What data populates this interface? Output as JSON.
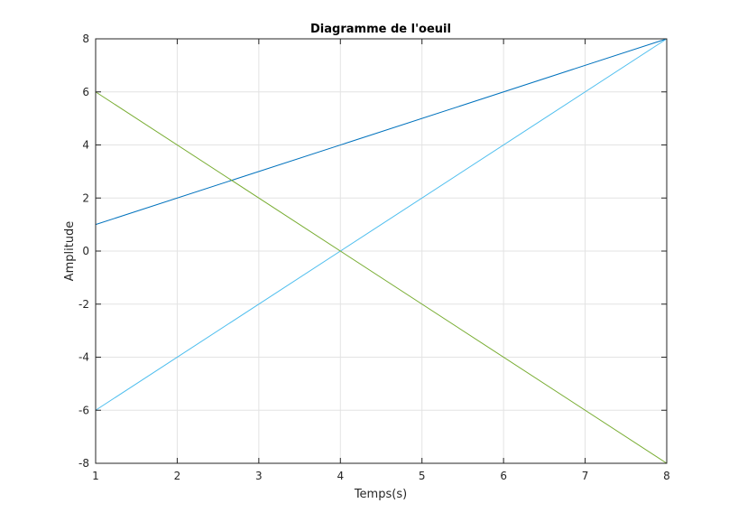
{
  "chart_data": {
    "type": "line",
    "title": "Diagramme de l'oeuil",
    "xlabel": "Temps(s)",
    "ylabel": "Amplitude",
    "xlim": [
      1,
      8
    ],
    "ylim": [
      -8,
      8
    ],
    "xticks": [
      1,
      2,
      3,
      4,
      5,
      6,
      7,
      8
    ],
    "yticks": [
      -8,
      -6,
      -4,
      -2,
      0,
      2,
      4,
      6,
      8
    ],
    "grid": true,
    "series": [
      {
        "x": [
          1,
          8
        ],
        "y": [
          1,
          8
        ],
        "color": "#0072BD"
      },
      {
        "x": [
          1,
          8
        ],
        "y": [
          -6,
          8
        ],
        "color": "#4DBEEE"
      },
      {
        "x": [
          1,
          8
        ],
        "y": [
          6,
          -8
        ],
        "color": "#77AC30"
      },
      {
        "x": [
          1,
          8
        ],
        "y": [
          8,
          8
        ],
        "color": "#0072BD"
      },
      {
        "x": [
          1,
          8
        ],
        "y": [
          -8,
          -8
        ],
        "color": "#0072BD"
      }
    ]
  }
}
